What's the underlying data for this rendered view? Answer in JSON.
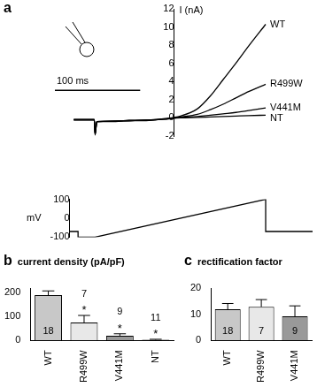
{
  "chart_data": [
    {
      "panel": "a",
      "type": "line",
      "x": [
        -25,
        -1,
        0,
        2,
        20,
        40,
        60,
        80,
        100,
        120,
        135,
        150,
        165,
        180,
        200
      ],
      "series": [
        {
          "name": "WT",
          "color": "#000000",
          "values": [
            -0.2,
            -0.2,
            -1.9,
            -0.4,
            -0.4,
            -0.3,
            -0.3,
            -0.1,
            0.2,
            1.0,
            2.4,
            4.2,
            6.0,
            7.9,
            10.3
          ]
        },
        {
          "name": "R499W",
          "color": "#000000",
          "values": [
            -0.2,
            -0.2,
            -1.8,
            -0.4,
            -0.35,
            -0.3,
            -0.25,
            -0.15,
            0.1,
            0.4,
            0.9,
            1.5,
            2.2,
            2.9,
            3.7
          ]
        },
        {
          "name": "V441M",
          "color": "#000000",
          "values": [
            -0.2,
            -0.2,
            -1.8,
            -0.4,
            -0.35,
            -0.3,
            -0.25,
            -0.15,
            0.05,
            0.15,
            0.3,
            0.45,
            0.6,
            0.8,
            1.1
          ]
        },
        {
          "name": "NT",
          "color": "#000000",
          "values": [
            -0.2,
            -0.2,
            -1.7,
            -0.4,
            -0.35,
            -0.3,
            -0.25,
            -0.15,
            0,
            0.05,
            0.1,
            0.15,
            0.2,
            0.25,
            0.3
          ]
        }
      ],
      "xlim": [
        -70,
        255
      ],
      "ylim": [
        -2,
        12
      ],
      "yticks": [
        -2,
        0,
        2,
        4,
        6,
        8,
        10,
        12
      ],
      "ylabel": "I (nA)",
      "tick_labels": "y",
      "scale_bar": {
        "length": 100,
        "label": "100 ms"
      }
    },
    {
      "type": "line",
      "x": [
        -30,
        -20,
        -20,
        0,
        200,
        200,
        255
      ],
      "values": [
        -70,
        -70,
        -100,
        -100,
        100,
        -70,
        -70
      ],
      "color": "#000000",
      "xlim": [
        -70,
        255
      ],
      "ylim": [
        -100,
        100
      ],
      "yticks": [
        -100,
        0,
        100
      ],
      "ylabel": "mV",
      "tick_labels": "y"
    },
    {
      "panel": "b",
      "type": "bar",
      "title": "current density (pA/pF)",
      "categories": [
        "WT",
        "R499W",
        "V441M",
        "NT"
      ],
      "values": [
        190,
        75,
        20,
        3
      ],
      "error": [
        18,
        30,
        8,
        2
      ],
      "n": [
        18,
        7,
        9,
        11
      ],
      "significance": [
        null,
        "*",
        "*",
        "*"
      ],
      "colors": [
        "#c8c8c8",
        "#e8e8e8",
        "#999999",
        "#6e6e6e"
      ],
      "ylim": [
        0,
        220
      ],
      "yticks": [
        0,
        100,
        200
      ]
    },
    {
      "panel": "c",
      "type": "bar",
      "title": "rectification factor",
      "categories": [
        "WT",
        "R499W",
        "V441M"
      ],
      "values": [
        11.9,
        12.8,
        9.2
      ],
      "error": [
        2.2,
        2.8,
        4.0
      ],
      "n": [
        18,
        7,
        9
      ],
      "colors": [
        "#c8c8c8",
        "#e8e8e8",
        "#999999"
      ],
      "ylim": [
        0,
        20
      ],
      "yticks": [
        0,
        10,
        20
      ]
    }
  ]
}
